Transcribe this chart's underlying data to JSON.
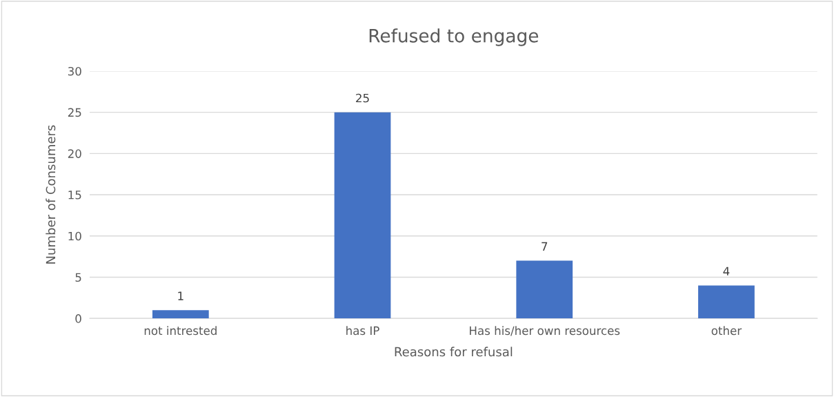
{
  "chart_data": {
    "type": "bar",
    "title": "Refused to engage",
    "xlabel": "Reasons for refusal",
    "ylabel": "Number of Consumers",
    "categories": [
      "not intrested",
      "has IP",
      "Has his/her own resources",
      "other"
    ],
    "values": [
      1,
      25,
      7,
      4
    ],
    "color": "#4472c4",
    "ylim": [
      0,
      30
    ],
    "yticks": [
      0,
      5,
      10,
      15,
      20,
      25,
      30
    ],
    "grid": "y",
    "data_labels": true
  }
}
